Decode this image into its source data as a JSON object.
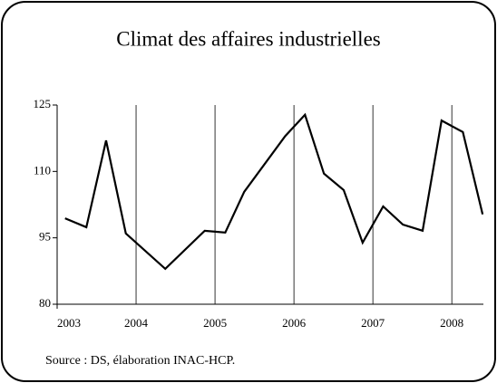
{
  "chart_data": {
    "type": "line",
    "title": "Climat des affaires industrielles",
    "source": "Source : DS, élaboration INAC-HCP.",
    "x": [
      2003.1,
      2003.37,
      2003.62,
      2003.87,
      2004.37,
      2004.87,
      2005.13,
      2005.37,
      2005.89,
      2006.14,
      2006.38,
      2006.63,
      2006.87,
      2007.13,
      2007.38,
      2007.63,
      2007.87,
      2008.14,
      2008.39
    ],
    "series": [
      {
        "color": "#000000",
        "values": [
          99.4,
          97.4,
          117.0,
          96.0,
          88.0,
          96.6,
          96.2,
          105.4,
          118.0,
          122.8,
          109.5,
          105.8,
          93.9,
          102.1,
          98.0,
          96.6,
          121.5,
          118.9,
          100.3
        ]
      }
    ],
    "xlim": [
      2003,
      2008.4
    ],
    "xticks": [
      2003,
      2004,
      2005,
      2006,
      2007,
      2008
    ],
    "ylim": [
      80,
      125
    ],
    "yticks": [
      80,
      95,
      110,
      125
    ],
    "grid": true
  }
}
